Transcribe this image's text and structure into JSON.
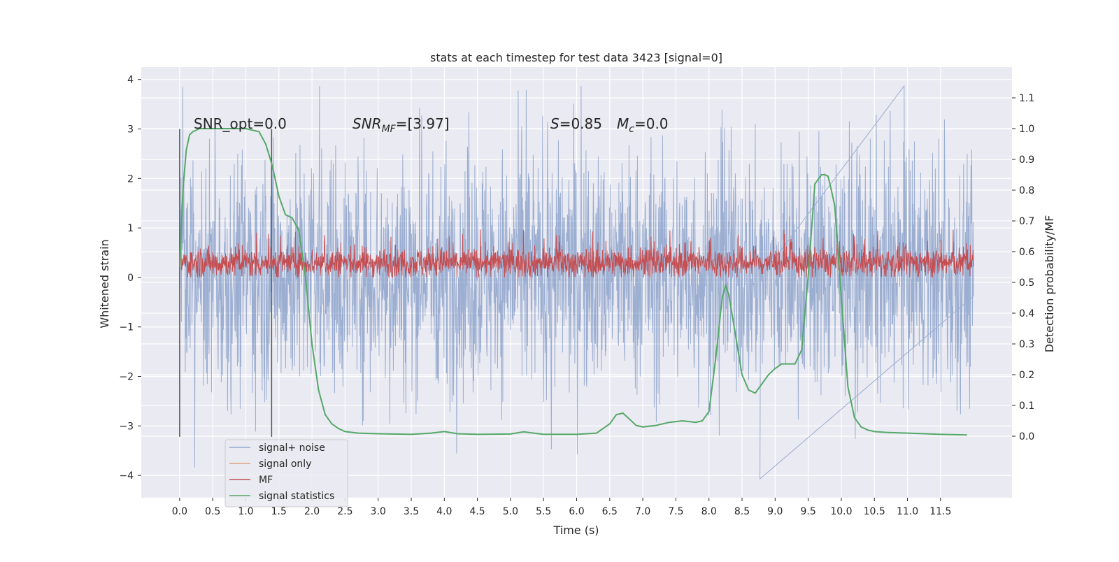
{
  "chart_data": {
    "type": "line",
    "title": "stats at each timestep for test data 3423 [signal=0]",
    "xlabel": "Time (s)",
    "ylabel": "Whitened strain",
    "y2label": "Detection probability/MF",
    "xlim": [
      -0.58,
      12.58
    ],
    "ylim": [
      -4.45,
      4.25
    ],
    "y2lim": [
      -0.2,
      1.2
    ],
    "xticks": [
      0.0,
      0.5,
      1.0,
      1.5,
      2.0,
      2.5,
      3.0,
      3.5,
      4.0,
      4.5,
      5.0,
      5.5,
      6.0,
      6.5,
      7.0,
      7.5,
      8.0,
      8.5,
      9.0,
      9.5,
      10.0,
      10.5,
      11.0,
      11.5
    ],
    "xtick_labels": [
      "0.0",
      "0.5",
      "1.0",
      "1.5",
      "2.0",
      "2.5",
      "3.0",
      "3.5",
      "4.0",
      "4.5",
      "5.0",
      "5.5",
      "6.0",
      "6.5",
      "7.0",
      "7.5",
      "8.0",
      "8.5",
      "9.0",
      "9.5",
      "10.0",
      "10.5",
      "11.0",
      "11.5"
    ],
    "yticks": [
      -4,
      -3,
      -2,
      -1,
      0,
      1,
      2,
      3,
      4
    ],
    "ytick_labels": [
      "−4",
      "−3",
      "−2",
      "−1",
      "0",
      "1",
      "2",
      "3",
      "4"
    ],
    "y2ticks": [
      0.0,
      0.1,
      0.2,
      0.3,
      0.4,
      0.5,
      0.6,
      0.7,
      0.8,
      0.9,
      1.0,
      1.1
    ],
    "y2tick_labels": [
      "0.0",
      "0.1",
      "0.2",
      "0.3",
      "0.4",
      "0.5",
      "0.6",
      "0.7",
      "0.8",
      "0.9",
      "1.0",
      "1.1"
    ],
    "grid": true,
    "legend_position": "lower-left",
    "annotations": {
      "snr_opt": "SNR_opt=0.0",
      "snr_mf_main": "SNR",
      "snr_mf_sub": "MF",
      "snr_mf_rest": "=[3.97]",
      "s_main": "S",
      "s_rest": "=0.85",
      "mc_main": "M",
      "mc_sub": "c",
      "mc_rest": "=0.0"
    },
    "vlines": [
      0.0,
      1.39
    ],
    "vline_range": [
      -3.22,
      3.0
    ],
    "series": [
      {
        "name": "signal+ noise",
        "color": "#4c72b0",
        "kind": "noise",
        "x_range": [
          0.0,
          12.0
        ],
        "typical_range": [
          -1.9,
          2.1
        ],
        "extremes": [
          -4.07,
          3.87
        ]
      },
      {
        "name": "signal only",
        "color": "#dd8452",
        "kind": "flat",
        "values": []
      },
      {
        "name": "MF",
        "color": "#c44e52",
        "kind": "noise",
        "x_range": [
          0.0,
          12.0
        ],
        "typical_range": [
          0.0,
          0.6
        ],
        "extremes": [
          0.0,
          0.97
        ]
      },
      {
        "name": "signal statistics",
        "color": "#55a868",
        "axis": "right",
        "x": [
          0.0,
          0.05,
          0.1,
          0.15,
          0.2,
          0.3,
          0.5,
          0.8,
          1.0,
          1.2,
          1.3,
          1.4,
          1.5,
          1.6,
          1.7,
          1.8,
          1.9,
          2.0,
          2.1,
          2.2,
          2.3,
          2.4,
          2.5,
          2.7,
          3.0,
          3.5,
          3.8,
          4.0,
          4.2,
          4.5,
          5.0,
          5.2,
          5.5,
          6.0,
          6.3,
          6.5,
          6.6,
          6.7,
          6.8,
          6.9,
          7.0,
          7.2,
          7.4,
          7.6,
          7.8,
          7.9,
          8.0,
          8.1,
          8.2,
          8.25,
          8.3,
          8.4,
          8.5,
          8.6,
          8.7,
          8.8,
          8.9,
          9.0,
          9.1,
          9.2,
          9.3,
          9.4,
          9.5,
          9.6,
          9.7,
          9.75,
          9.8,
          9.85,
          9.9,
          10.0,
          10.1,
          10.2,
          10.3,
          10.4,
          10.5,
          10.7,
          11.0,
          11.5,
          11.9
        ],
        "values": [
          0.55,
          0.8,
          0.93,
          0.98,
          0.99,
          1.0,
          1.0,
          1.0,
          1.0,
          0.99,
          0.95,
          0.88,
          0.78,
          0.72,
          0.71,
          0.67,
          0.52,
          0.3,
          0.15,
          0.07,
          0.04,
          0.025,
          0.015,
          0.01,
          0.008,
          0.006,
          0.01,
          0.015,
          0.008,
          0.006,
          0.007,
          0.014,
          0.006,
          0.006,
          0.01,
          0.04,
          0.07,
          0.075,
          0.055,
          0.035,
          0.03,
          0.035,
          0.045,
          0.05,
          0.045,
          0.05,
          0.08,
          0.25,
          0.45,
          0.49,
          0.46,
          0.33,
          0.2,
          0.15,
          0.14,
          0.17,
          0.2,
          0.22,
          0.235,
          0.235,
          0.235,
          0.28,
          0.52,
          0.82,
          0.85,
          0.85,
          0.845,
          0.8,
          0.75,
          0.45,
          0.16,
          0.06,
          0.03,
          0.02,
          0.015,
          0.012,
          0.01,
          0.006,
          0.004
        ]
      }
    ]
  }
}
